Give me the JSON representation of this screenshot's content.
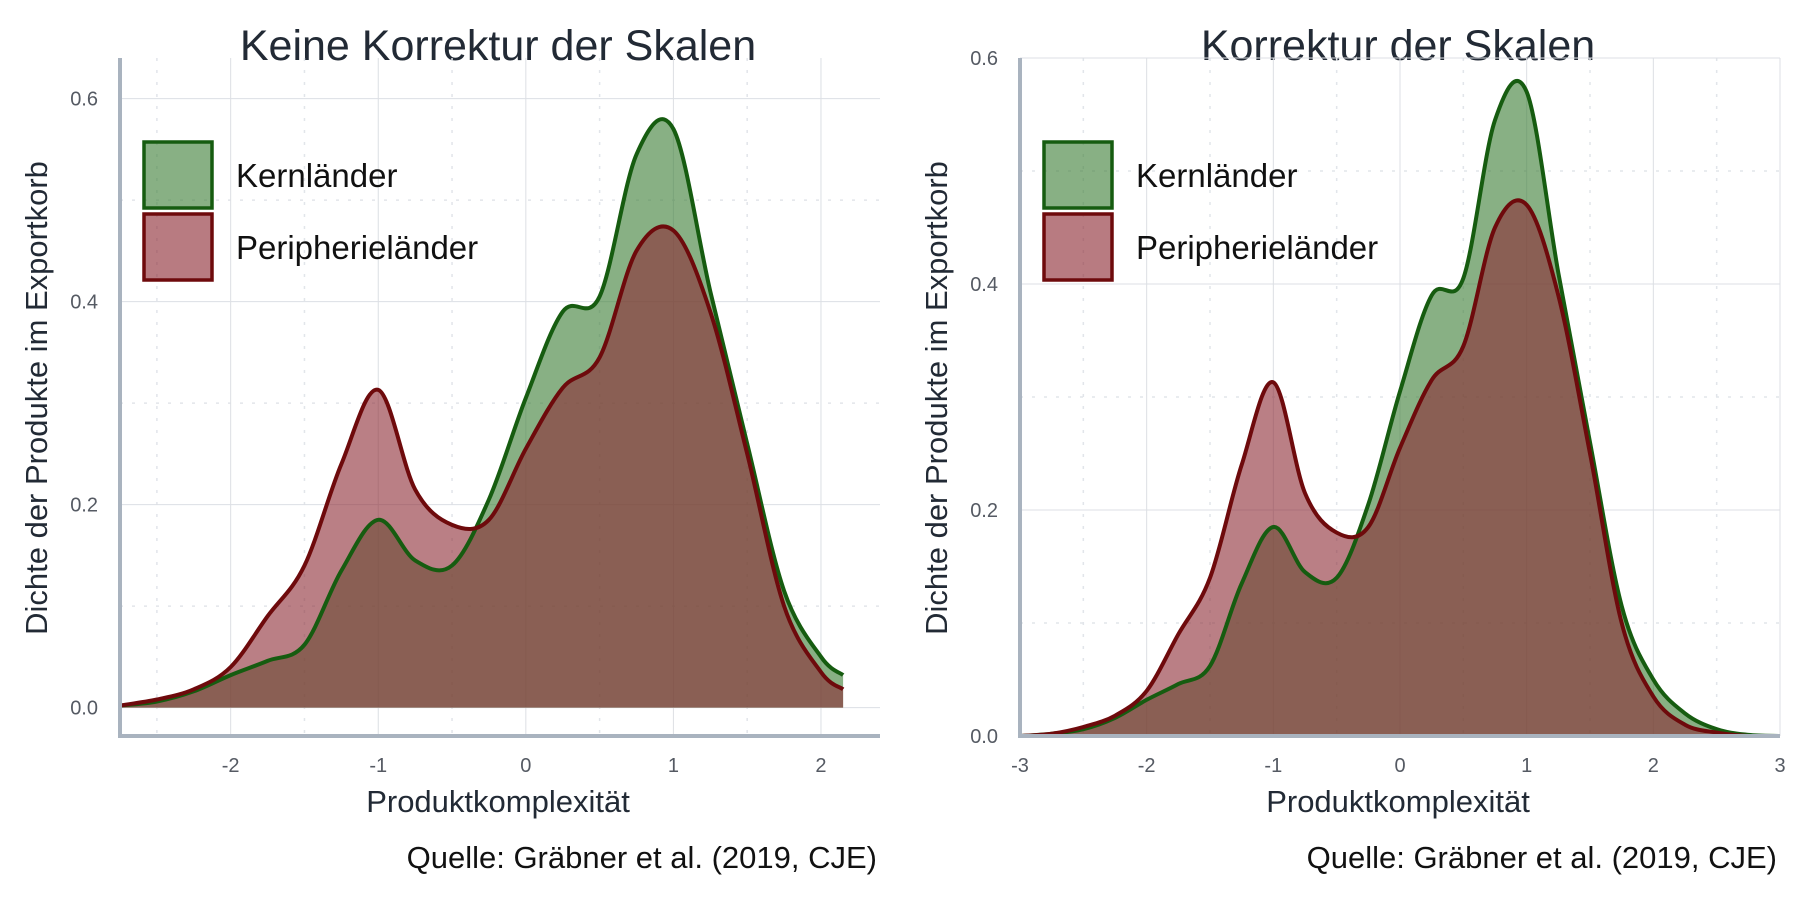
{
  "colors": {
    "kern_fill": "#3f7f38",
    "kern_line": "#165c10",
    "peri_fill": "#8c2a33",
    "peri_line": "#6e0a0c",
    "overlap_fill": "#765444"
  },
  "chart_data": [
    {
      "type": "area",
      "title": "Keine Korrektur der Skalen",
      "xlabel": "Produktkomplexität",
      "ylabel": "Dichte der Produkte im Exportkorb",
      "caption": "Quelle: Gräbner et al. (2019, CJE)",
      "xlim": [
        -2.75,
        2.4
      ],
      "ylim": [
        -0.028,
        0.64
      ],
      "xticks": [
        -2,
        -1,
        0,
        1,
        2
      ],
      "xtick_labels": [
        "-2",
        "-1",
        "0",
        "1",
        "2"
      ],
      "yticks": [
        0.0,
        0.2,
        0.4,
        0.6
      ],
      "ytick_labels": [
        "0.0",
        "0.2",
        "0.4",
        "0.6"
      ],
      "grid": true,
      "legend": "top-left",
      "x": [
        -2.75,
        -2.5,
        -2.25,
        -2.0,
        -1.75,
        -1.5,
        -1.25,
        -1.0,
        -0.75,
        -0.5,
        -0.25,
        0.0,
        0.25,
        0.5,
        0.75,
        1.0,
        1.25,
        1.5,
        1.75,
        2.0,
        2.15
      ],
      "series": [
        {
          "name": "Kernländer",
          "values": [
            0.002,
            0.006,
            0.016,
            0.032,
            0.046,
            0.062,
            0.135,
            0.185,
            0.145,
            0.14,
            0.205,
            0.305,
            0.39,
            0.405,
            0.545,
            0.57,
            0.41,
            0.26,
            0.115,
            0.05,
            0.032
          ]
        },
        {
          "name": "Peripherieländer",
          "values": [
            0.002,
            0.008,
            0.018,
            0.04,
            0.09,
            0.14,
            0.24,
            0.313,
            0.215,
            0.18,
            0.185,
            0.255,
            0.315,
            0.345,
            0.45,
            0.47,
            0.39,
            0.25,
            0.1,
            0.035,
            0.018
          ]
        }
      ]
    },
    {
      "type": "area",
      "title": "Korrektur der Skalen",
      "xlabel": "Produktkomplexität",
      "ylabel": "Dichte der Produkte im Exportkorb",
      "caption": "Quelle: Gräbner et al. (2019, CJE)",
      "xlim": [
        -3,
        3
      ],
      "ylim": [
        0,
        0.6
      ],
      "xticks": [
        -3,
        -2,
        -1,
        0,
        1,
        2,
        3
      ],
      "xtick_labels": [
        "-3",
        "-2",
        "-1",
        "0",
        "1",
        "2",
        "3"
      ],
      "yticks": [
        0.0,
        0.2,
        0.4,
        0.6
      ],
      "ytick_labels": [
        "0.0",
        "0.2",
        "0.4",
        "0.6"
      ],
      "grid": true,
      "legend": "top-left",
      "x": [
        -3.0,
        -2.75,
        -2.5,
        -2.25,
        -2.0,
        -1.75,
        -1.5,
        -1.25,
        -1.0,
        -0.75,
        -0.5,
        -0.25,
        0.0,
        0.25,
        0.5,
        0.75,
        1.0,
        1.25,
        1.5,
        1.75,
        2.0,
        2.25,
        2.5,
        2.75,
        3.0
      ],
      "series": [
        {
          "name": "Kernländer",
          "values": [
            0.0,
            0.002,
            0.006,
            0.016,
            0.032,
            0.046,
            0.062,
            0.135,
            0.185,
            0.145,
            0.14,
            0.205,
            0.305,
            0.39,
            0.405,
            0.545,
            0.57,
            0.41,
            0.26,
            0.115,
            0.05,
            0.02,
            0.006,
            0.001,
            0.0
          ]
        },
        {
          "name": "Peripherieländer",
          "values": [
            0.0,
            0.002,
            0.008,
            0.018,
            0.04,
            0.09,
            0.14,
            0.24,
            0.313,
            0.215,
            0.18,
            0.185,
            0.255,
            0.315,
            0.345,
            0.45,
            0.47,
            0.39,
            0.25,
            0.1,
            0.035,
            0.01,
            0.003,
            0.0,
            0.0
          ]
        }
      ]
    }
  ]
}
